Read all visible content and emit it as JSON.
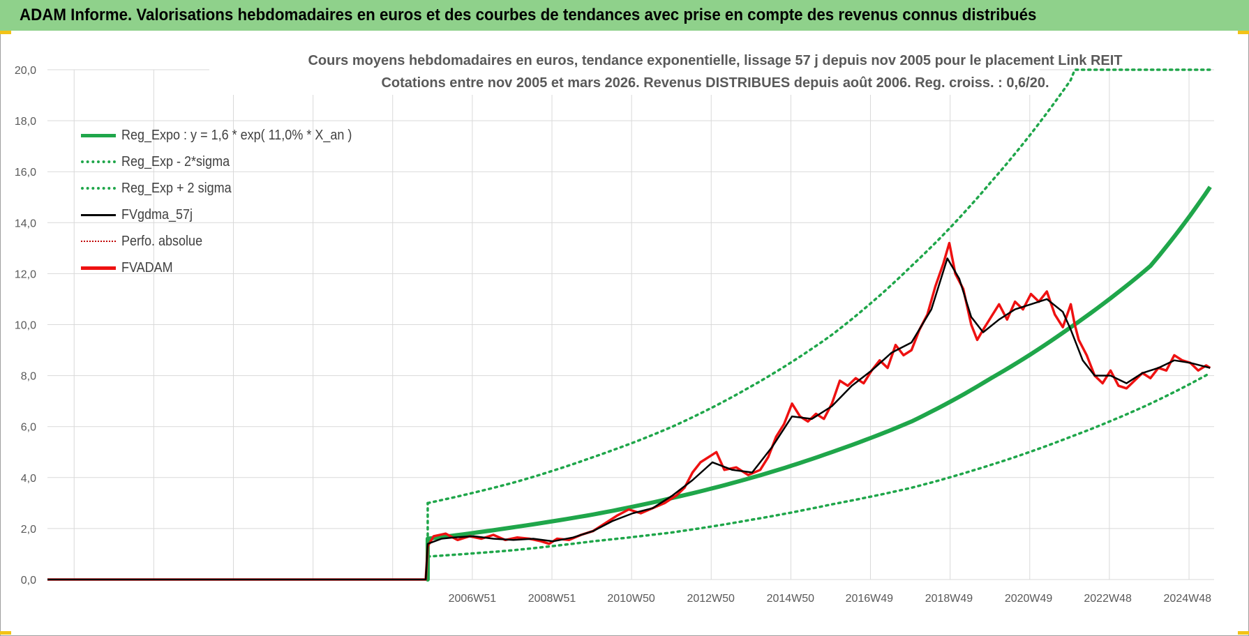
{
  "header": {
    "title": "ADAM Informe. Valorisations hebdomadaires en euros et des courbes de tendances avec prise en compte des revenus connus distribués"
  },
  "colors": {
    "banner": "#8fd18b",
    "reg_expo": "#1fa64a",
    "fvgdma": "#000000",
    "fvadam": "#ee1111",
    "perfo": "#c00000",
    "grid": "#d9d9d9",
    "axis_text": "#595959",
    "corner_accent": "#f2c318"
  },
  "chart_data": {
    "type": "line",
    "title": "Cours moyens hebdomadaires en euros, tendance exponentielle, lissage 57 j depuis nov 2005  pour le placement Link REIT",
    "subtitle": "Cotations entre nov 2005 et mars 2026. Revenus DISTRIBUES depuis août 2006. Reg. croiss. : 0,6/20.",
    "ylim": [
      0,
      20
    ],
    "y_ticks": [
      "0,0",
      "2,0",
      "4,0",
      "6,0",
      "8,0",
      "10,0",
      "12,0",
      "14,0",
      "16,0",
      "18,0",
      "20,0"
    ],
    "x_range_years": [
      1996.3,
      2025.6
    ],
    "x_ticks": [
      {
        "label": "2006W51",
        "year": 2006.97
      },
      {
        "label": "2008W51",
        "year": 2008.97
      },
      {
        "label": "2010W50",
        "year": 2010.96
      },
      {
        "label": "2012W50",
        "year": 2012.96
      },
      {
        "label": "2014W50",
        "year": 2014.96
      },
      {
        "label": "2016W49",
        "year": 2016.94
      },
      {
        "label": "2018W49",
        "year": 2018.94
      },
      {
        "label": "2020W49",
        "year": 2020.94
      },
      {
        "label": "2022W48",
        "year": 2022.93
      },
      {
        "label": "2024W48",
        "year": 2024.93
      }
    ],
    "grid": true,
    "legend_position": "top-left",
    "legend": [
      {
        "key": "reg_expo",
        "label": "Reg_Expo : y = 1,6 * exp( 11,0% *  X_an )",
        "style": "solid-thick",
        "color": "#1fa64a"
      },
      {
        "key": "reg_low",
        "label": "Reg_Exp - 2*sigma",
        "style": "dotted",
        "color": "#1fa64a"
      },
      {
        "key": "reg_high",
        "label": "Reg_Exp + 2 sigma",
        "style": "dotted",
        "color": "#1fa64a"
      },
      {
        "key": "fvgdma",
        "label": "FVgdma_57j",
        "style": "solid",
        "color": "#000000"
      },
      {
        "key": "perfo",
        "label": "Perfo. absolue",
        "style": "dotted-thin",
        "color": "#c00000"
      },
      {
        "key": "fvadam",
        "label": "FVADAM",
        "style": "solid-thick",
        "color": "#ee1111"
      }
    ],
    "series": [
      {
        "name": "Reg_Expo : y = 1,6 * exp( 11,0% *  X_an )",
        "key": "reg_expo",
        "x": [
          2005.85,
          2008,
          2010,
          2012,
          2014,
          2016,
          2018,
          2020,
          2022,
          2024,
          2025.5
        ],
        "y": [
          1.6,
          2.05,
          2.55,
          3.2,
          4.0,
          5.0,
          6.2,
          7.9,
          9.9,
          12.3,
          15.4
        ]
      },
      {
        "name": "Reg_Exp - 2*sigma",
        "key": "reg_low",
        "x": [
          2005.85,
          2008,
          2010,
          2012,
          2014,
          2016,
          2018,
          2020,
          2022,
          2024,
          2025.5
        ],
        "y": [
          0.9,
          1.15,
          1.5,
          1.85,
          2.35,
          2.95,
          3.6,
          4.5,
          5.6,
          6.9,
          8.1
        ]
      },
      {
        "name": "Reg_Exp + 2 sigma",
        "key": "reg_high",
        "x": [
          2005.85,
          2008,
          2010,
          2012,
          2014,
          2016,
          2018,
          2020,
          2022,
          2022.1,
          2025.5
        ],
        "y": [
          3.0,
          3.8,
          4.8,
          6.0,
          7.6,
          9.6,
          12.3,
          15.6,
          19.6,
          20.0,
          20.0
        ]
      },
      {
        "name": "FVgdma_57j",
        "key": "fvgdma",
        "x": [
          1996.3,
          2005.8,
          2005.85,
          2006.2,
          2006.5,
          2007.0,
          2007.5,
          2008.0,
          2008.5,
          2009.0,
          2009.5,
          2010.0,
          2010.5,
          2011.0,
          2011.5,
          2012.0,
          2012.5,
          2013.0,
          2013.5,
          2014.0,
          2014.5,
          2015.0,
          2015.5,
          2016.0,
          2016.5,
          2017.0,
          2017.5,
          2018.0,
          2018.5,
          2018.9,
          2019.2,
          2019.5,
          2019.8,
          2020.2,
          2020.6,
          2021.0,
          2021.4,
          2021.8,
          2022.0,
          2022.3,
          2022.6,
          2023.0,
          2023.4,
          2023.8,
          2024.2,
          2024.6,
          2025.0,
          2025.5
        ],
        "y": [
          0,
          0,
          1.4,
          1.6,
          1.65,
          1.7,
          1.6,
          1.55,
          1.6,
          1.5,
          1.65,
          1.9,
          2.3,
          2.6,
          2.8,
          3.3,
          3.9,
          4.6,
          4.3,
          4.2,
          5.2,
          6.4,
          6.3,
          6.8,
          7.6,
          8.2,
          8.9,
          9.3,
          10.6,
          12.6,
          11.8,
          10.3,
          9.7,
          10.2,
          10.6,
          10.8,
          11.0,
          10.5,
          9.8,
          8.6,
          8.0,
          8.0,
          7.7,
          8.1,
          8.3,
          8.6,
          8.5,
          8.3
        ]
      },
      {
        "name": "FVADAM",
        "key": "fvadam",
        "x": [
          1996.3,
          2005.8,
          2005.85,
          2006.0,
          2006.3,
          2006.6,
          2006.9,
          2007.2,
          2007.5,
          2007.8,
          2008.1,
          2008.4,
          2008.7,
          2008.9,
          2009.1,
          2009.4,
          2009.7,
          2010.0,
          2010.3,
          2010.6,
          2010.9,
          2011.2,
          2011.5,
          2011.8,
          2012.1,
          2012.3,
          2012.5,
          2012.7,
          2012.9,
          2013.1,
          2013.3,
          2013.6,
          2013.9,
          2014.2,
          2014.4,
          2014.6,
          2014.8,
          2015.0,
          2015.2,
          2015.4,
          2015.6,
          2015.8,
          2016.0,
          2016.2,
          2016.4,
          2016.6,
          2016.8,
          2017.0,
          2017.2,
          2017.4,
          2017.6,
          2017.8,
          2018.0,
          2018.2,
          2018.4,
          2018.6,
          2018.8,
          2018.95,
          2019.1,
          2019.3,
          2019.5,
          2019.65,
          2019.8,
          2020.0,
          2020.2,
          2020.4,
          2020.6,
          2020.8,
          2021.0,
          2021.2,
          2021.4,
          2021.6,
          2021.8,
          2022.0,
          2022.1,
          2022.2,
          2022.4,
          2022.6,
          2022.8,
          2023.0,
          2023.2,
          2023.4,
          2023.6,
          2023.8,
          2024.0,
          2024.2,
          2024.4,
          2024.6,
          2024.8,
          2025.0,
          2025.2,
          2025.4,
          2025.5
        ],
        "y": [
          0,
          0,
          1.3,
          1.7,
          1.8,
          1.55,
          1.7,
          1.6,
          1.75,
          1.55,
          1.65,
          1.6,
          1.5,
          1.4,
          1.6,
          1.55,
          1.75,
          1.9,
          2.2,
          2.5,
          2.75,
          2.6,
          2.8,
          3.0,
          3.3,
          3.6,
          4.2,
          4.6,
          4.8,
          5.0,
          4.3,
          4.4,
          4.1,
          4.3,
          4.8,
          5.6,
          6.1,
          6.9,
          6.4,
          6.2,
          6.5,
          6.3,
          6.9,
          7.8,
          7.6,
          7.9,
          7.7,
          8.2,
          8.6,
          8.3,
          9.2,
          8.8,
          9.0,
          9.8,
          10.4,
          11.5,
          12.4,
          13.2,
          12.0,
          11.4,
          10.0,
          9.4,
          9.8,
          10.3,
          10.8,
          10.2,
          10.9,
          10.6,
          11.2,
          10.9,
          11.3,
          10.4,
          9.9,
          10.8,
          10.0,
          9.4,
          8.8,
          8.0,
          7.7,
          8.2,
          7.6,
          7.5,
          7.8,
          8.1,
          7.9,
          8.3,
          8.2,
          8.8,
          8.6,
          8.5,
          8.2,
          8.4,
          8.3
        ]
      }
    ]
  }
}
